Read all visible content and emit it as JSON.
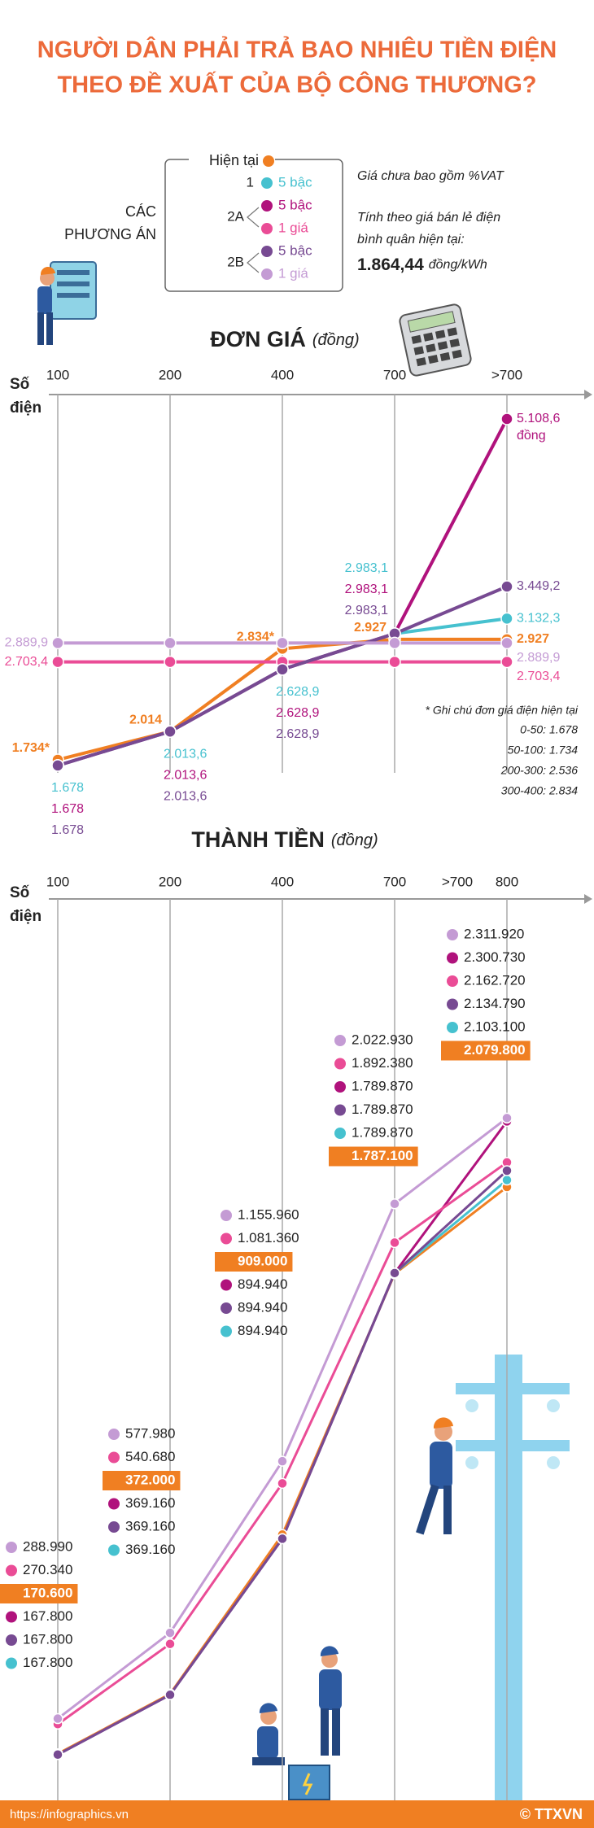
{
  "title": [
    "NGƯỜI DÂN PHẢI TRẢ BAO NHIÊU TIỀN ĐIỆN",
    "THEO ĐỀ XUẤT CỦA BỘ CÔNG THƯƠNG?"
  ],
  "legend_title": [
    "CÁC",
    "PHƯƠNG ÁN"
  ],
  "info": {
    "vat": "Giá chưa bao gồm %VAT",
    "basis": [
      "Tính theo giá bán lẻ điện",
      "bình quân hiện tại:"
    ],
    "price": "1.864,44",
    "unit": "đồng/kWh"
  },
  "chart_data": [
    {
      "type": "line",
      "title": "ĐƠN GIÁ",
      "subtitle": "(đồng)",
      "x_label": [
        "Số",
        "điện"
      ],
      "categories": [
        "100",
        "200",
        "400",
        "700",
        ">700"
      ],
      "ylim": [
        1500,
        5350
      ],
      "unit_note": "đồng",
      "note_title": "* Ghi chú đơn giá điện hiện tại",
      "notes": [
        "0-50: 1.678",
        "50-100: 1.734",
        "200-300: 2.536",
        "300-400: 2.834"
      ],
      "series": [
        {
          "name": "Hiện tại",
          "color": "#f07f22",
          "values": [
            1734,
            2014,
            2834,
            2927,
            2927
          ],
          "value_labels": [
            "1.734*",
            "2.014",
            "2.834*",
            "2.927",
            "2.927"
          ]
        },
        {
          "group": "1",
          "name": "5 bậc",
          "color": "#46c1cf",
          "values": [
            1678,
            2013.6,
            2628.9,
            2983.1,
            3132.3
          ],
          "value_labels": [
            "1.678",
            "2.013,6",
            "2.628,9",
            "2.983,1",
            "3.132,3"
          ]
        },
        {
          "group": "2A",
          "name": "5 bậc",
          "color": "#b0127c",
          "values": [
            1678,
            2013.6,
            2628.9,
            2983.1,
            5108.6
          ],
          "value_labels": [
            "1.678",
            "2.013,6",
            "2.628,9",
            "2.983,1",
            "5.108,6"
          ]
        },
        {
          "name": "1 giá",
          "color": "#ea4c96",
          "values": [
            2703.4,
            2703.4,
            2703.4,
            2703.4,
            2703.4
          ],
          "value_labels": [
            "2.703,4",
            null,
            null,
            null,
            "2.703,4"
          ]
        },
        {
          "group": "2B",
          "name": "5 bậc",
          "color": "#774a92",
          "values": [
            1678,
            2013.6,
            2628.9,
            2983.1,
            3449.2
          ],
          "value_labels": [
            "1.678",
            "2.013,6",
            "2.628,9",
            "2.983,1",
            "3.449,2"
          ]
        },
        {
          "name": "1 giá",
          "color": "#c49bd4",
          "values": [
            2889.9,
            2889.9,
            2889.9,
            2889.9,
            2889.9
          ],
          "value_labels": [
            "2.889,9",
            null,
            null,
            null,
            "2.889,9"
          ]
        }
      ]
    },
    {
      "type": "line",
      "title": "THÀNH TIỀN",
      "subtitle": "(đồng)",
      "x_label": [
        "Số",
        "điện"
      ],
      "categories": [
        "100",
        "200",
        "400",
        "700",
        "800"
      ],
      "x_note": ">700",
      "ylim": [
        0,
        3050000
      ],
      "series": [
        {
          "color": "#f07f22",
          "values": [
            170600,
            372000,
            909000,
            1787100,
            2079800
          ],
          "value_labels": [
            "170.600",
            "372.000",
            "909.000",
            "1.787.100",
            "2.079.800"
          ]
        },
        {
          "color": "#46c1cf",
          "values": [
            167800,
            369160,
            894940,
            1789870,
            2103100
          ],
          "value_labels": [
            "167.800",
            "369.160",
            "894.940",
            "1.789.870",
            "2.103.100"
          ]
        },
        {
          "color": "#b0127c",
          "values": [
            167800,
            369160,
            894940,
            1789870,
            2300730
          ],
          "value_labels": [
            "167.800",
            "369.160",
            "894.940",
            "1.789.870",
            "2.300.730"
          ]
        },
        {
          "color": "#ea4c96",
          "values": [
            270340,
            540680,
            1081360,
            1892380,
            2162720
          ],
          "value_labels": [
            "270.340",
            "540.680",
            "1.081.360",
            "1.892.380",
            "2.162.720"
          ]
        },
        {
          "color": "#774a92",
          "values": [
            167800,
            369160,
            894940,
            1789870,
            2134790
          ],
          "value_labels": [
            "167.800",
            "369.160",
            "894.940",
            "1.789.870",
            "2.134.790"
          ]
        },
        {
          "color": "#c49bd4",
          "values": [
            288990,
            577980,
            1155960,
            2022930,
            2311920
          ],
          "value_labels": [
            "288.990",
            "577.980",
            "1.155.960",
            "2.022.930",
            "2.311.920"
          ]
        }
      ]
    }
  ],
  "footer": "https://infographics.vn",
  "credit": "© TTXVN"
}
